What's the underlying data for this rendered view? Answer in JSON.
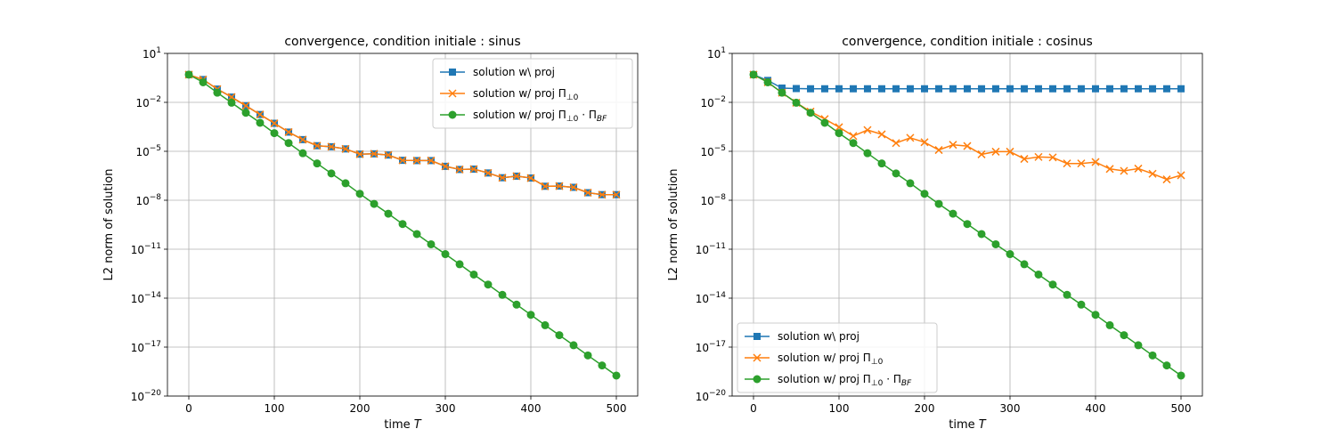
{
  "chart_data": [
    {
      "type": "line",
      "title": "convergence, condition initiale : sinus",
      "xlabel": "time T",
      "xlabel_plain": "time ",
      "xlabel_italic": "T",
      "ylabel": "L2 norm of solution",
      "yscale": "log",
      "xlim": [
        -25,
        525
      ],
      "ylim": [
        1e-20,
        10
      ],
      "grid": true,
      "legend_loc": "upper right",
      "xticks": [
        0,
        100,
        200,
        300,
        400,
        500
      ],
      "xtick_labels": [
        "0",
        "100",
        "200",
        "300",
        "400",
        "500"
      ],
      "ytick_exponents": [
        1,
        -2,
        -5,
        -8,
        -11,
        -14,
        -17,
        -20
      ],
      "ytick_labels": [
        "10^1",
        "10^-2",
        "10^-5",
        "10^-8",
        "10^-11",
        "10^-14",
        "10^-17",
        "10^-20"
      ],
      "x": [
        0,
        16.7,
        33.3,
        50,
        66.7,
        83.3,
        100,
        116.7,
        133.3,
        150,
        166.7,
        183.3,
        200,
        216.7,
        233.3,
        250,
        266.7,
        283.3,
        300,
        316.7,
        333.3,
        350,
        366.7,
        383.3,
        400,
        416.7,
        433.3,
        450,
        466.7,
        483.3,
        500
      ],
      "series": [
        {
          "name": "solution w\\ proj",
          "legend_parts": [
            "solution w\\ proj"
          ],
          "color": "#1f77b4",
          "marker": "square",
          "values": [
            0.5,
            0.25,
            0.065,
            0.021,
            0.0062,
            0.0018,
            0.00052,
            0.00015,
            5.2e-05,
            2.2e-05,
            1.9e-05,
            1.4e-05,
            6.7e-06,
            7e-06,
            5.9e-06,
            2.8e-06,
            2.7e-06,
            2.7e-06,
            1.2e-06,
            7.7e-07,
            8.1e-07,
            4.7e-07,
            2.4e-07,
            3e-07,
            2.3e-07,
            7.2e-08,
            7.4e-08,
            6.2e-08,
            2.9e-08,
            2.2e-08,
            2.2e-08
          ]
        },
        {
          "name": "solution w/ proj Π⊥0",
          "legend_parts": [
            "solution w/ proj Π",
            "⊥0"
          ],
          "color": "#ff7f0e",
          "marker": "x",
          "values": [
            0.5,
            0.25,
            0.065,
            0.021,
            0.0062,
            0.0018,
            0.00052,
            0.00015,
            5.2e-05,
            2.2e-05,
            1.9e-05,
            1.4e-05,
            6.7e-06,
            7e-06,
            5.9e-06,
            2.8e-06,
            2.7e-06,
            2.7e-06,
            1.2e-06,
            7.7e-07,
            8.1e-07,
            4.7e-07,
            2.4e-07,
            3e-07,
            2.3e-07,
            7.2e-08,
            7.4e-08,
            6.2e-08,
            2.9e-08,
            2.2e-08,
            2.2e-08
          ]
        },
        {
          "name": "solution w/ proj Π⊥0·ΠBF",
          "legend_parts": [
            "solution w/ proj Π",
            "⊥0",
            " · Π",
            "BF"
          ],
          "color": "#2ca02c",
          "marker": "circle",
          "values": [
            0.5,
            0.17,
            0.039,
            0.0095,
            0.0023,
            0.00056,
            0.00013,
            3.2e-05,
            7.6e-06,
            1.8e-06,
            4.4e-07,
            1.1e-07,
            2.5e-08,
            6e-09,
            1.5e-09,
            3.5e-10,
            8.5e-11,
            2e-11,
            5e-12,
            1.2e-12,
            2.8e-13,
            6.8e-14,
            1.6e-14,
            4e-15,
            9.5e-16,
            2.2e-16,
            5.4e-17,
            1.3e-17,
            3.1e-18,
            7.5e-19,
            1.8e-19
          ]
        }
      ]
    },
    {
      "type": "line",
      "title": "convergence, condition initiale : cosinus",
      "xlabel": "time T",
      "xlabel_plain": "time ",
      "xlabel_italic": "T",
      "ylabel": "L2 norm of solution",
      "yscale": "log",
      "xlim": [
        -25,
        525
      ],
      "ylim": [
        1e-20,
        10
      ],
      "grid": true,
      "legend_loc": "lower left",
      "xticks": [
        0,
        100,
        200,
        300,
        400,
        500
      ],
      "xtick_labels": [
        "0",
        "100",
        "200",
        "300",
        "400",
        "500"
      ],
      "ytick_exponents": [
        1,
        -2,
        -5,
        -8,
        -11,
        -14,
        -17,
        -20
      ],
      "ytick_labels": [
        "10^1",
        "10^-2",
        "10^-5",
        "10^-8",
        "10^-11",
        "10^-14",
        "10^-17",
        "10^-20"
      ],
      "x": [
        0,
        16.7,
        33.3,
        50,
        66.7,
        83.3,
        100,
        116.7,
        133.3,
        150,
        166.7,
        183.3,
        200,
        216.7,
        233.3,
        250,
        266.7,
        283.3,
        300,
        316.7,
        333.3,
        350,
        366.7,
        383.3,
        400,
        416.7,
        433.3,
        450,
        466.7,
        483.3,
        500
      ],
      "series": [
        {
          "name": "solution w\\ proj",
          "legend_parts": [
            "solution w\\ proj"
          ],
          "color": "#1f77b4",
          "marker": "square",
          "values": [
            0.5,
            0.22,
            0.075,
            0.07,
            0.068,
            0.068,
            0.068,
            0.068,
            0.068,
            0.068,
            0.068,
            0.068,
            0.068,
            0.068,
            0.068,
            0.068,
            0.068,
            0.068,
            0.068,
            0.068,
            0.068,
            0.068,
            0.068,
            0.068,
            0.068,
            0.068,
            0.068,
            0.068,
            0.068,
            0.068,
            0.068
          ]
        },
        {
          "name": "solution w/ proj Π⊥0",
          "legend_parts": [
            "solution w/ proj Π",
            "⊥0"
          ],
          "color": "#ff7f0e",
          "marker": "x",
          "values": [
            0.5,
            0.17,
            0.039,
            0.0095,
            0.0027,
            0.00095,
            0.0003,
            8.7e-05,
            0.0002,
            0.00011,
            3.2e-05,
            6.7e-05,
            3.6e-05,
            1.2e-05,
            2.5e-05,
            2.1e-05,
            6.5e-06,
            9.5e-06,
            9.5e-06,
            3.4e-06,
            4.5e-06,
            4.2e-06,
            1.8e-06,
            1.8e-06,
            2.2e-06,
            8.3e-07,
            6.3e-07,
            8.7e-07,
            4.2e-07,
            1.9e-07,
            3.4e-07
          ]
        },
        {
          "name": "solution w/ proj Π⊥0·ΠBF",
          "legend_parts": [
            "solution w/ proj Π",
            "⊥0",
            " · Π",
            "BF"
          ],
          "color": "#2ca02c",
          "marker": "circle",
          "values": [
            0.5,
            0.17,
            0.039,
            0.0095,
            0.0023,
            0.00056,
            0.00013,
            3.2e-05,
            7.6e-06,
            1.8e-06,
            4.4e-07,
            1.1e-07,
            2.5e-08,
            6e-09,
            1.5e-09,
            3.5e-10,
            8.5e-11,
            2e-11,
            5e-12,
            1.2e-12,
            2.8e-13,
            6.8e-14,
            1.6e-14,
            4e-15,
            9.5e-16,
            2.2e-16,
            5.4e-17,
            1.3e-17,
            3.1e-18,
            7.5e-19,
            1.8e-19
          ]
        }
      ]
    }
  ]
}
